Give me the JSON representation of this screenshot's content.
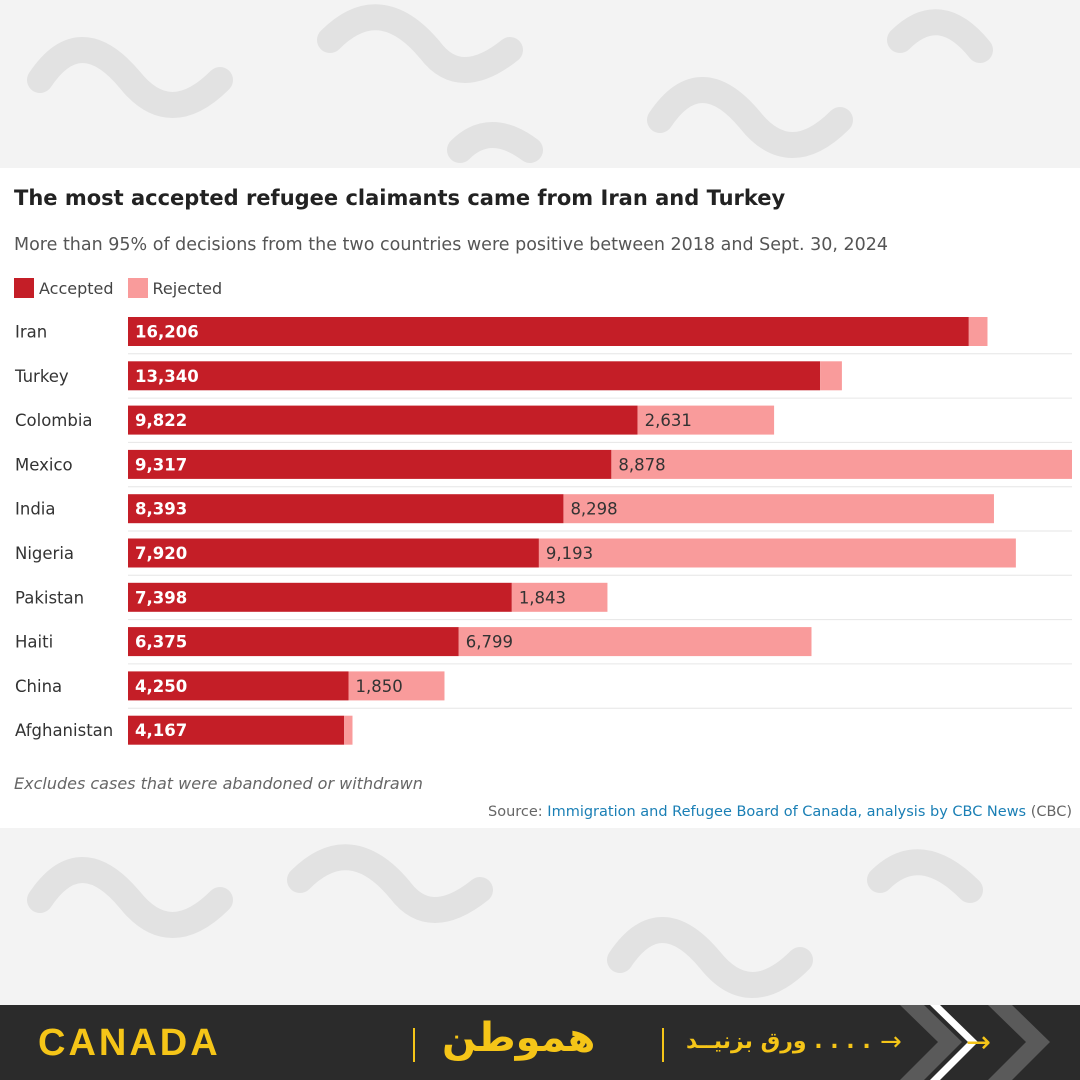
{
  "chart_data": {
    "type": "bar",
    "stacked": true,
    "orientation": "horizontal",
    "title": "The most accepted refugee claimants came from Iran and Turkey",
    "subtitle": "More than 95% of decisions from the two countries were positive between 2018 and Sept. 30, 2024",
    "categories": [
      "Iran",
      "Turkey",
      "Colombia",
      "Mexico",
      "India",
      "Nigeria",
      "Pakistan",
      "Haiti",
      "China",
      "Afghanistan"
    ],
    "series": [
      {
        "name": "Accepted",
        "color": "#c41e27",
        "values": [
          16206,
          13340,
          9822,
          9317,
          8393,
          7920,
          7398,
          6375,
          4250,
          4167
        ],
        "labels": [
          "16,206",
          "13,340",
          "9,822",
          "9,317",
          "8,393",
          "7,920",
          "7,398",
          "6,375",
          "4,250",
          "4,167"
        ]
      },
      {
        "name": "Rejected",
        "color": "#f99b9b",
        "values": [
          360,
          420,
          2631,
          8878,
          8298,
          9193,
          1843,
          6799,
          1850,
          160
        ],
        "labels": [
          "",
          "",
          "2,631",
          "8,878",
          "8,298",
          "9,193",
          "1,843",
          "6,799",
          "1,850",
          ""
        ]
      }
    ],
    "xlim": [
      0,
      18195
    ],
    "grid": false,
    "legend_position": "top-left",
    "note": "Excludes cases that were abandoned or withdrawn",
    "source": {
      "prefix": "Source: ",
      "link_text": "Immigration and Refugee Board of Canada, analysis by CBC News",
      "suffix": " (CBC)"
    }
  },
  "legend": {
    "accepted_label": "Accepted",
    "rejected_label": "Rejected",
    "accepted_color": "#c41e27",
    "rejected_color": "#f99b9b"
  },
  "footer": {
    "country": "CANADA",
    "brand": "هموطن",
    "swipe_text": "ورق بزنیــد . . . .",
    "accent_color": "#f5c518",
    "background_color": "#2b2b2b"
  }
}
